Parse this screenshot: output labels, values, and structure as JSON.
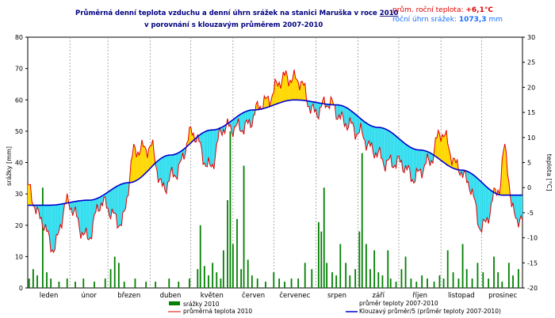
{
  "chart_data": {
    "type": "line",
    "title_line1_prefix": "Průměrná denní teplota vzduchu a denní úhrn srážek na stanici Maruška v roce",
    "title_year": "2010",
    "title_line2": "v porovnání s klouzavým průměrem 2007-2010",
    "stats": {
      "temp_label": "prům. roční teplota:",
      "temp_value": "+6,1°C",
      "precip_label": "roční úhrn srážek:",
      "precip_value": "1073,3",
      "precip_unit": "mm"
    },
    "left_axis": {
      "label": "srážky [mm]",
      "min": 0,
      "max": 80,
      "ticks": [
        "0",
        "10",
        "20",
        "30",
        "40",
        "50",
        "60",
        "70",
        "80"
      ]
    },
    "right_axis": {
      "label": "teplota [°C]",
      "min": -20,
      "max": 30,
      "ticks": [
        "-20",
        "-15",
        "-10",
        "-5",
        "0",
        "5",
        "10",
        "15",
        "20",
        "25",
        "30"
      ]
    },
    "months": [
      "leden",
      "únor",
      "březen",
      "duben",
      "květen",
      "červen",
      "červenec",
      "srpen",
      "září",
      "říjen",
      "listopad",
      "prosinec"
    ],
    "legend": {
      "precip": "srážky 2010",
      "temp": "průměrná teplota 2010",
      "avg_temp": "průměr teploty 2007-2010",
      "moving_avg": "Klouzavý průměr/5 (průměr teploty 2007-2010)"
    },
    "colors": {
      "precip": "#008000",
      "temp": "#e00000",
      "moving_avg": "#0000cc",
      "above": "#ffd700",
      "below": "#33ddee",
      "title": "#000080",
      "stat_temp": "#e00000",
      "stat_precip": "#1a6fff"
    },
    "moving_avg_monthly_mid_c": [
      -3.5,
      -2.5,
      1.0,
      6.5,
      11.5,
      15.5,
      17.5,
      16.5,
      12.0,
      7.5,
      3.5,
      -1.5
    ],
    "temperature_keypoints_c": [
      {
        "day": 1,
        "value": 0.0
      },
      {
        "day": 10,
        "value": -6.0
      },
      {
        "day": 20,
        "value": -12.0
      },
      {
        "day": 30,
        "value": -3.0
      },
      {
        "day": 45,
        "value": -10.0
      },
      {
        "day": 55,
        "value": -3.0
      },
      {
        "day": 70,
        "value": -7.0
      },
      {
        "day": 80,
        "value": 7.5
      },
      {
        "day": 92,
        "value": 8.0
      },
      {
        "day": 100,
        "value": 0.0
      },
      {
        "day": 110,
        "value": 3.0
      },
      {
        "day": 122,
        "value": 11.0
      },
      {
        "day": 135,
        "value": 4.0
      },
      {
        "day": 145,
        "value": 12.0
      },
      {
        "day": 160,
        "value": 12.0
      },
      {
        "day": 175,
        "value": 17.0
      },
      {
        "day": 190,
        "value": 22.0
      },
      {
        "day": 200,
        "value": 21.5
      },
      {
        "day": 212,
        "value": 15.0
      },
      {
        "day": 222,
        "value": 17.0
      },
      {
        "day": 235,
        "value": 13.0
      },
      {
        "day": 245,
        "value": 11.0
      },
      {
        "day": 255,
        "value": 7.5
      },
      {
        "day": 265,
        "value": 5.0
      },
      {
        "day": 275,
        "value": 5.0
      },
      {
        "day": 285,
        "value": 2.0
      },
      {
        "day": 296,
        "value": 5.0
      },
      {
        "day": 305,
        "value": 11.0
      },
      {
        "day": 318,
        "value": 4.0
      },
      {
        "day": 325,
        "value": 1.0
      },
      {
        "day": 335,
        "value": -8.0
      },
      {
        "day": 348,
        "value": 0.0
      },
      {
        "day": 352,
        "value": 8.0
      },
      {
        "day": 358,
        "value": -5.0
      },
      {
        "day": 365,
        "value": -7.0
      }
    ],
    "precipitation_daily_mm": [
      {
        "day": 2,
        "value": 3
      },
      {
        "day": 5,
        "value": 6
      },
      {
        "day": 8,
        "value": 4
      },
      {
        "day": 12,
        "value": 32
      },
      {
        "day": 15,
        "value": 5
      },
      {
        "day": 18,
        "value": 3
      },
      {
        "day": 24,
        "value": 2
      },
      {
        "day": 30,
        "value": 3
      },
      {
        "day": 36,
        "value": 2
      },
      {
        "day": 42,
        "value": 3
      },
      {
        "day": 50,
        "value": 2
      },
      {
        "day": 58,
        "value": 3
      },
      {
        "day": 62,
        "value": 6
      },
      {
        "day": 65,
        "value": 10
      },
      {
        "day": 68,
        "value": 8
      },
      {
        "day": 72,
        "value": 2
      },
      {
        "day": 80,
        "value": 3
      },
      {
        "day": 88,
        "value": 2
      },
      {
        "day": 95,
        "value": 2
      },
      {
        "day": 105,
        "value": 3
      },
      {
        "day": 112,
        "value": 2
      },
      {
        "day": 120,
        "value": 3
      },
      {
        "day": 126,
        "value": 6
      },
      {
        "day": 128,
        "value": 20
      },
      {
        "day": 131,
        "value": 7
      },
      {
        "day": 134,
        "value": 4
      },
      {
        "day": 137,
        "value": 8
      },
      {
        "day": 140,
        "value": 5
      },
      {
        "day": 143,
        "value": 3
      },
      {
        "day": 145,
        "value": 12
      },
      {
        "day": 148,
        "value": 28
      },
      {
        "day": 150,
        "value": 50
      },
      {
        "day": 152,
        "value": 14
      },
      {
        "day": 155,
        "value": 22
      },
      {
        "day": 158,
        "value": 6
      },
      {
        "day": 160,
        "value": 39
      },
      {
        "day": 163,
        "value": 9
      },
      {
        "day": 166,
        "value": 4
      },
      {
        "day": 170,
        "value": 3
      },
      {
        "day": 176,
        "value": 2
      },
      {
        "day": 182,
        "value": 5
      },
      {
        "day": 186,
        "value": 3
      },
      {
        "day": 190,
        "value": 2
      },
      {
        "day": 195,
        "value": 3
      },
      {
        "day": 200,
        "value": 3
      },
      {
        "day": 205,
        "value": 8
      },
      {
        "day": 210,
        "value": 6
      },
      {
        "day": 215,
        "value": 21
      },
      {
        "day": 217,
        "value": 18
      },
      {
        "day": 219,
        "value": 32
      },
      {
        "day": 221,
        "value": 8
      },
      {
        "day": 225,
        "value": 5
      },
      {
        "day": 228,
        "value": 4
      },
      {
        "day": 231,
        "value": 14
      },
      {
        "day": 235,
        "value": 8
      },
      {
        "day": 238,
        "value": 4
      },
      {
        "day": 242,
        "value": 6
      },
      {
        "day": 245,
        "value": 18
      },
      {
        "day": 247,
        "value": 43
      },
      {
        "day": 250,
        "value": 14
      },
      {
        "day": 253,
        "value": 6
      },
      {
        "day": 256,
        "value": 12
      },
      {
        "day": 259,
        "value": 5
      },
      {
        "day": 262,
        "value": 4
      },
      {
        "day": 266,
        "value": 12
      },
      {
        "day": 268,
        "value": 3
      },
      {
        "day": 272,
        "value": 2
      },
      {
        "day": 276,
        "value": 6
      },
      {
        "day": 279,
        "value": 10
      },
      {
        "day": 283,
        "value": 3
      },
      {
        "day": 287,
        "value": 2
      },
      {
        "day": 291,
        "value": 4
      },
      {
        "day": 295,
        "value": 3
      },
      {
        "day": 300,
        "value": 2
      },
      {
        "day": 304,
        "value": 4
      },
      {
        "day": 307,
        "value": 3
      },
      {
        "day": 310,
        "value": 12
      },
      {
        "day": 314,
        "value": 5
      },
      {
        "day": 318,
        "value": 3
      },
      {
        "day": 321,
        "value": 14
      },
      {
        "day": 324,
        "value": 6
      },
      {
        "day": 328,
        "value": 3
      },
      {
        "day": 332,
        "value": 8
      },
      {
        "day": 336,
        "value": 5
      },
      {
        "day": 340,
        "value": 3
      },
      {
        "day": 344,
        "value": 10
      },
      {
        "day": 347,
        "value": 5
      },
      {
        "day": 350,
        "value": 2
      },
      {
        "day": 355,
        "value": 8
      },
      {
        "day": 358,
        "value": 4
      },
      {
        "day": 362,
        "value": 6
      }
    ]
  }
}
